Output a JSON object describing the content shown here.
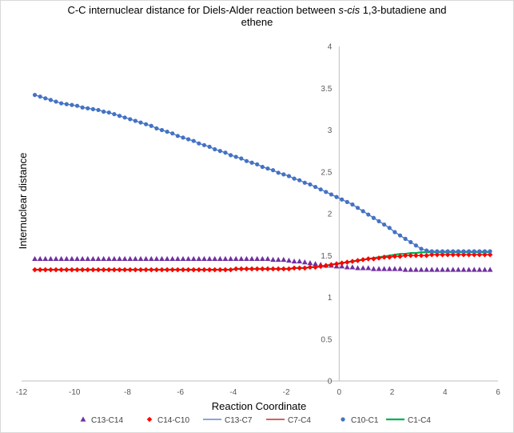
{
  "chart_data": {
    "type": "scatter",
    "title_parts": [
      {
        "text": "C-C internuclear distance for Diels-Alder reaction between ",
        "italic": false
      },
      {
        "text": "s-cis",
        "italic": true
      },
      {
        "text": " 1,3-butadiene and",
        "italic": false
      }
    ],
    "title_line2": "ethene",
    "xlabel": "Reaction Coordinate",
    "ylabel": "Internuclear distance",
    "xlim": [
      -12,
      6
    ],
    "ylim": [
      0,
      4
    ],
    "x_ticks": [
      "-12",
      "-10",
      "-8",
      "-6",
      "-4",
      "-2",
      "0",
      "2",
      "4",
      "6"
    ],
    "y_ticks": [
      "0",
      "0.5",
      "1",
      "1.5",
      "2",
      "2.5",
      "3",
      "3.5",
      "4"
    ],
    "x": [
      -11.5,
      -11.3,
      -11.1,
      -10.9,
      -10.7,
      -10.5,
      -10.3,
      -10.1,
      -9.9,
      -9.7,
      -9.5,
      -9.3,
      -9.1,
      -8.9,
      -8.7,
      -8.5,
      -8.3,
      -8.1,
      -7.9,
      -7.7,
      -7.5,
      -7.3,
      -7.1,
      -6.9,
      -6.7,
      -6.5,
      -6.3,
      -6.1,
      -5.9,
      -5.7,
      -5.5,
      -5.3,
      -5.1,
      -4.9,
      -4.7,
      -4.5,
      -4.3,
      -4.1,
      -3.9,
      -3.7,
      -3.5,
      -3.3,
      -3.1,
      -2.9,
      -2.7,
      -2.5,
      -2.3,
      -2.1,
      -1.9,
      -1.7,
      -1.5,
      -1.3,
      -1.1,
      -0.9,
      -0.7,
      -0.5,
      -0.3,
      -0.1,
      0.1,
      0.3,
      0.5,
      0.7,
      0.9,
      1.1,
      1.3,
      1.5,
      1.7,
      1.9,
      2.1,
      2.3,
      2.5,
      2.7,
      2.9,
      3.1,
      3.3,
      3.5,
      3.7,
      3.9,
      4.1,
      4.3,
      4.5,
      4.7,
      4.9,
      5.1,
      5.3,
      5.5,
      5.7
    ],
    "series": [
      {
        "name": "C13-C14",
        "marker": "triangle",
        "color": "#7030A0",
        "values": [
          1.46,
          1.46,
          1.46,
          1.46,
          1.46,
          1.46,
          1.46,
          1.46,
          1.46,
          1.46,
          1.46,
          1.46,
          1.46,
          1.46,
          1.46,
          1.46,
          1.46,
          1.46,
          1.46,
          1.46,
          1.46,
          1.46,
          1.46,
          1.46,
          1.46,
          1.46,
          1.46,
          1.46,
          1.46,
          1.46,
          1.46,
          1.46,
          1.46,
          1.46,
          1.46,
          1.46,
          1.46,
          1.46,
          1.46,
          1.46,
          1.46,
          1.46,
          1.46,
          1.46,
          1.46,
          1.45,
          1.45,
          1.45,
          1.44,
          1.43,
          1.43,
          1.42,
          1.41,
          1.4,
          1.39,
          1.38,
          1.38,
          1.37,
          1.37,
          1.36,
          1.36,
          1.35,
          1.35,
          1.35,
          1.34,
          1.34,
          1.34,
          1.34,
          1.34,
          1.34,
          1.33,
          1.33,
          1.33,
          1.33,
          1.33,
          1.33,
          1.33,
          1.33,
          1.33,
          1.33,
          1.33,
          1.33,
          1.33,
          1.33,
          1.33,
          1.33,
          1.33
        ]
      },
      {
        "name": "C14-C10",
        "marker": "diamond",
        "color": "#FF0000",
        "values": [
          1.33,
          1.33,
          1.33,
          1.33,
          1.33,
          1.33,
          1.33,
          1.33,
          1.33,
          1.33,
          1.33,
          1.33,
          1.33,
          1.33,
          1.33,
          1.33,
          1.33,
          1.33,
          1.33,
          1.33,
          1.33,
          1.33,
          1.33,
          1.33,
          1.33,
          1.33,
          1.33,
          1.33,
          1.33,
          1.33,
          1.33,
          1.33,
          1.33,
          1.33,
          1.33,
          1.33,
          1.33,
          1.33,
          1.34,
          1.34,
          1.34,
          1.34,
          1.34,
          1.34,
          1.34,
          1.34,
          1.34,
          1.34,
          1.34,
          1.35,
          1.35,
          1.35,
          1.36,
          1.36,
          1.37,
          1.38,
          1.39,
          1.4,
          1.41,
          1.42,
          1.43,
          1.44,
          1.45,
          1.46,
          1.46,
          1.47,
          1.48,
          1.48,
          1.49,
          1.49,
          1.5,
          1.5,
          1.5,
          1.5,
          1.5,
          1.51,
          1.51,
          1.51,
          1.51,
          1.51,
          1.51,
          1.51,
          1.51,
          1.51,
          1.51,
          1.51,
          1.51
        ]
      },
      {
        "name": "C13-C7",
        "marker": "line",
        "color": "#4472C4",
        "values": [
          3.42,
          3.4,
          3.38,
          3.36,
          3.34,
          3.32,
          3.31,
          3.3,
          3.29,
          3.27,
          3.26,
          3.25,
          3.24,
          3.22,
          3.21,
          3.19,
          3.17,
          3.15,
          3.13,
          3.11,
          3.09,
          3.07,
          3.05,
          3.02,
          3.0,
          2.98,
          2.96,
          2.93,
          2.91,
          2.89,
          2.87,
          2.84,
          2.82,
          2.8,
          2.77,
          2.75,
          2.73,
          2.7,
          2.68,
          2.66,
          2.63,
          2.61,
          2.59,
          2.56,
          2.54,
          2.52,
          2.49,
          2.47,
          2.45,
          2.42,
          2.4,
          2.37,
          2.35,
          2.32,
          2.29,
          2.26,
          2.23,
          2.2,
          2.17,
          2.14,
          2.11,
          2.07,
          2.03,
          1.99,
          1.95,
          1.91,
          1.87,
          1.83,
          1.78,
          1.74,
          1.7,
          1.66,
          1.62,
          1.58,
          1.56,
          1.55,
          1.55,
          1.55,
          1.55,
          1.55,
          1.55,
          1.55,
          1.55,
          1.55,
          1.55,
          1.55,
          1.55
        ]
      },
      {
        "name": "C7-C4",
        "marker": "line",
        "color": "#C00000",
        "values": [
          1.33,
          1.33,
          1.33,
          1.33,
          1.33,
          1.33,
          1.33,
          1.33,
          1.33,
          1.33,
          1.33,
          1.33,
          1.33,
          1.33,
          1.33,
          1.33,
          1.33,
          1.33,
          1.33,
          1.33,
          1.33,
          1.33,
          1.33,
          1.33,
          1.33,
          1.33,
          1.33,
          1.33,
          1.33,
          1.33,
          1.33,
          1.33,
          1.33,
          1.33,
          1.33,
          1.33,
          1.33,
          1.33,
          1.34,
          1.34,
          1.34,
          1.34,
          1.34,
          1.34,
          1.34,
          1.34,
          1.34,
          1.34,
          1.34,
          1.35,
          1.35,
          1.35,
          1.36,
          1.36,
          1.37,
          1.38,
          1.39,
          1.4,
          1.41,
          1.42,
          1.43,
          1.44,
          1.45,
          1.46,
          1.46,
          1.47,
          1.48,
          1.48,
          1.49,
          1.49,
          1.5,
          1.5,
          1.5,
          1.5,
          1.5,
          1.51,
          1.51,
          1.51,
          1.51,
          1.51,
          1.51,
          1.51,
          1.51,
          1.51,
          1.51,
          1.51,
          1.51
        ]
      },
      {
        "name": "C10-C1",
        "marker": "circle",
        "color": "#4472C4",
        "values": [
          3.42,
          3.4,
          3.38,
          3.36,
          3.34,
          3.32,
          3.31,
          3.3,
          3.29,
          3.27,
          3.26,
          3.25,
          3.24,
          3.22,
          3.21,
          3.19,
          3.17,
          3.15,
          3.13,
          3.11,
          3.09,
          3.07,
          3.05,
          3.02,
          3.0,
          2.98,
          2.96,
          2.93,
          2.91,
          2.89,
          2.87,
          2.84,
          2.82,
          2.8,
          2.77,
          2.75,
          2.73,
          2.7,
          2.68,
          2.66,
          2.63,
          2.61,
          2.59,
          2.56,
          2.54,
          2.52,
          2.49,
          2.47,
          2.45,
          2.42,
          2.4,
          2.37,
          2.35,
          2.32,
          2.29,
          2.26,
          2.23,
          2.2,
          2.17,
          2.14,
          2.11,
          2.07,
          2.03,
          1.99,
          1.95,
          1.91,
          1.87,
          1.83,
          1.78,
          1.74,
          1.7,
          1.66,
          1.62,
          1.58,
          1.56,
          1.55,
          1.55,
          1.55,
          1.55,
          1.55,
          1.55,
          1.55,
          1.55,
          1.55,
          1.55,
          1.55,
          1.55
        ]
      },
      {
        "name": "C1-C4",
        "marker": "line",
        "color": "#00B050",
        "values": [
          1.33,
          1.33,
          1.33,
          1.33,
          1.33,
          1.33,
          1.33,
          1.33,
          1.33,
          1.33,
          1.33,
          1.33,
          1.33,
          1.33,
          1.33,
          1.33,
          1.33,
          1.33,
          1.33,
          1.33,
          1.33,
          1.33,
          1.33,
          1.33,
          1.33,
          1.33,
          1.33,
          1.33,
          1.33,
          1.33,
          1.33,
          1.33,
          1.33,
          1.33,
          1.33,
          1.33,
          1.33,
          1.33,
          1.34,
          1.34,
          1.34,
          1.34,
          1.34,
          1.34,
          1.34,
          1.34,
          1.34,
          1.34,
          1.34,
          1.35,
          1.35,
          1.35,
          1.36,
          1.36,
          1.37,
          1.38,
          1.39,
          1.4,
          1.41,
          1.42,
          1.43,
          1.44,
          1.45,
          1.46,
          1.47,
          1.48,
          1.49,
          1.5,
          1.51,
          1.52,
          1.52,
          1.53,
          1.53,
          1.54,
          1.54,
          1.54,
          1.54,
          1.54,
          1.54,
          1.54,
          1.54,
          1.54,
          1.54,
          1.54,
          1.54,
          1.54,
          1.54
        ]
      }
    ],
    "legend_position": "bottom",
    "grid": false
  }
}
